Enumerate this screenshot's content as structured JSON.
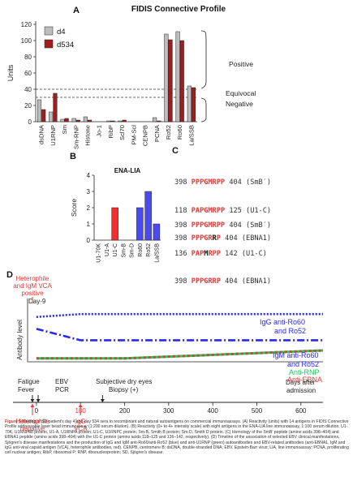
{
  "panels": {
    "a": "A",
    "b": "B",
    "c": "C",
    "d": "D"
  },
  "chart_data": [
    {
      "type": "bar",
      "title": "FIDIS Connective Profile",
      "ylabel": "Units",
      "ylim": [
        0,
        120
      ],
      "yticks": [
        0,
        20,
        40,
        60,
        80,
        100,
        120
      ],
      "categories": [
        "dsDNA",
        "U1RNP",
        "Sm",
        "Sm-RNP",
        "Histone",
        "Jo-1",
        "RibP",
        "Scl70",
        "PM-Scl",
        "CENPB",
        "PCNA",
        "Ro52",
        "Ro60",
        "La/SSB"
      ],
      "series": [
        {
          "name": "d4",
          "color": "#bdbdbd",
          "values": [
            27,
            12,
            3,
            4,
            6,
            0,
            1,
            1,
            0,
            0,
            5,
            108,
            111,
            44
          ]
        },
        {
          "name": "d534",
          "color": "#a11d1d",
          "values": [
            15,
            35,
            4,
            2,
            2,
            0,
            1,
            2,
            0,
            0,
            1,
            101,
            100,
            42
          ]
        }
      ],
      "reference_lines": [
        {
          "value": 40,
          "style": "dashed"
        },
        {
          "value": 30,
          "style": "dashed"
        }
      ],
      "zones": {
        "positive": "Positive",
        "equivocal": "Equivocal",
        "negative": "Negative"
      }
    },
    {
      "type": "bar",
      "title": "ENA-LIA",
      "ylabel": "Score",
      "ylim": [
        0,
        4
      ],
      "yticks": [
        0,
        1,
        2,
        3,
        4
      ],
      "categories": [
        "U1-70K",
        "U1-A",
        "U1-C",
        "Sm-B",
        "Sm-D",
        "Ro60",
        "Ro52",
        "La/SSB"
      ],
      "values": [
        0,
        0,
        2,
        0,
        0,
        2,
        3,
        1
      ],
      "colors": [
        "#3b3bff",
        "#3b3bff",
        "#f03030",
        "#3b3bff",
        "#3b3bff",
        "#4a4af5",
        "#4a4af5",
        "#4a4af5"
      ]
    },
    {
      "type": "line",
      "ylabel": "Antibody level",
      "xlabel": "Days after admission",
      "xticks": [
        0,
        100,
        200,
        300,
        400,
        500,
        600
      ],
      "xlim": [
        -20,
        650
      ],
      "ylim": [
        0,
        1
      ],
      "series": [
        {
          "name": "IgG anti-Ro60 and Ro52",
          "color": "#2929f0",
          "style": "dotted",
          "x": [
            0,
            100,
            650
          ],
          "y": [
            0.79,
            0.84,
            0.84
          ]
        },
        {
          "name": "IgM anti-Ro60 and Ro52",
          "color": "#2929f0",
          "style": "dashdot",
          "x": [
            0,
            100,
            650
          ],
          "y": [
            0.58,
            0.38,
            0.38
          ]
        },
        {
          "name": "Anti-RNP",
          "color": "#22c55e",
          "style": "solid",
          "x": [
            0,
            200,
            650
          ],
          "y": [
            0.06,
            0.06,
            0.2
          ]
        },
        {
          "name": "Anti-EBNA",
          "color": "#e53935",
          "style": "dashed",
          "x": [
            0,
            200,
            650
          ],
          "y": [
            0.06,
            0.06,
            0.2
          ]
        }
      ]
    }
  ],
  "sequences": [
    {
      "start": "398",
      "pre": "",
      "motif": "PPPGMRPP",
      "post": "",
      "end": "404",
      "label": "(SmB′)"
    },
    {
      "start": "118",
      "pre": "P",
      "motif": "APGMRPP",
      "post": "",
      "end": "125",
      "label": "(U1-C)"
    },
    {
      "start": "398",
      "pre": "",
      "motif": "PPPGR",
      "post": "R",
      "end": "404",
      "label": "(EBNA1)"
    },
    {
      "start": "398",
      "pre": "",
      "motif": "PPPGMRPP",
      "post": "",
      "end": "404",
      "label": "(SmB′)"
    },
    {
      "start": "136",
      "pre": "",
      "motif": "PAP",
      "mid": "M",
      "motif2": "RPP",
      "end": "142",
      "label": "(U1-C)"
    },
    {
      "start": "398",
      "pre": "",
      "motif": "PPPGRRP",
      "post": "",
      "end": "404",
      "label": "(EBNA1)"
    }
  ],
  "timeline": {
    "top_red_label_1": "Heterophile",
    "top_red_label_2": "and IgM VCA",
    "top_red_label_3": "positive",
    "day9": "Day-9",
    "fatigue": "Fatigue",
    "fever": "Fever",
    "ebv": "EBV",
    "pcr": "PCR",
    "dry_eyes": "Subjective dry eyes",
    "biopsy": "Biopsy (+)",
    "bottom_red_1": "Heterophile",
    "bottom_red_2": "negative",
    "bottom_red_3": "IgG",
    "bottom_red_4": "VCA"
  },
  "caption": {
    "lead": "Figure 5",
    "text": " Binding of SD patient's day 4 and day 534 sera to recombinant and natural autoantigens on commercial immunoassays. (A) Reactivity (units) with 14 antigens in FIDIS Connective Profile addressable laser bead immunoassay (1:200 serum dilution). (B) Reactivity (0+ to 4+ intensity scale) with eight antigens in the ENA-LIA line immunoassay, 1:100 serum dilution. U1-70K, U1RNP68 protein, U1-A, U1RNPA protein; U1-C, U1RNPC protein; Sm-B, Smith B protein; Sm-D, Smith D protein. (C) Homology of the SmB′ peptide (amino acids 398–404) and EBNA1 peptide (amino acids 398–404) with the U1-C protein (amino acids 118–125 and 136–142, respectively). (D) Timeline of the association of selected EBV clinical manifestations, Sjögren's disease manifestations and the production of IgG and IgM anti-Ro60/anti-Ro52 (blue) and anti-U1RNP (green) autoantibodies and EBV-related antibodies (anti-EBNA1, IgM and IgG anti-viral capsid antigen (VCA), heterophile antibodies, red). CENPB, centromere B; dsDNA, double-stranded DNA; EBV, Epstein-Barr virus; LIA, line immunoassay; PCNA, proliferating cell nuclear antigen; RibP, ribosomal P; RNP, ribonucleoprotein; SD, Sjögren's disease."
  }
}
